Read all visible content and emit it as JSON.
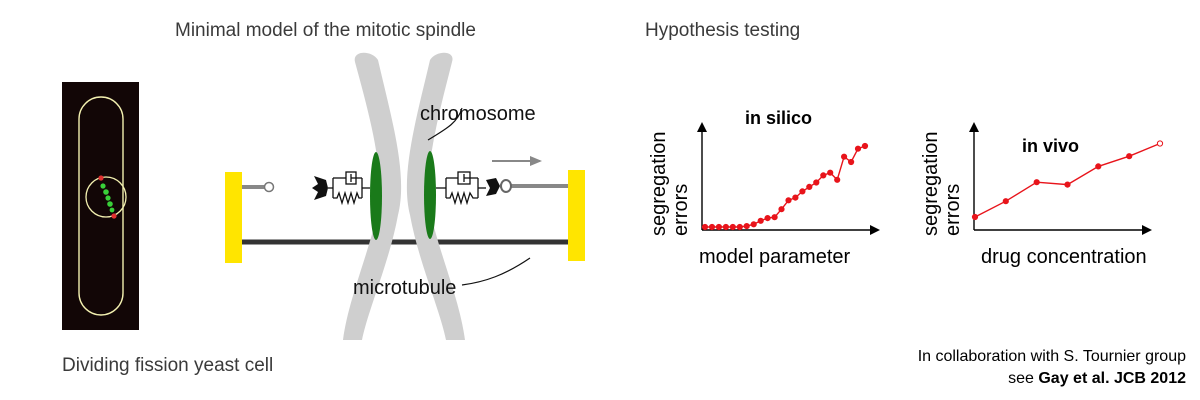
{
  "titles": {
    "model": "Minimal model of the mitotic spindle",
    "hypothesis": "Hypothesis testing"
  },
  "labels": {
    "chromosome": "chromosome",
    "microtubule": "microtubule",
    "cell_caption": "Dividing fission yeast cell"
  },
  "credit": {
    "line1": "In collaboration with S. Tournier group",
    "line2_prefix": "see ",
    "line2_bold": "Gay et al. JCB 2012"
  },
  "colors": {
    "red": "#e8141b",
    "yellow": "#ffe500",
    "green": "#1a7a1a",
    "gray_chromosome": "#cfcfcf",
    "microtubule": "#333333"
  },
  "chart_data": [
    {
      "type": "line",
      "title": "in silico",
      "xlabel": "model parameter",
      "ylabel": "segregation errors",
      "x": [
        0,
        1,
        2,
        3,
        4,
        5,
        6,
        7,
        8,
        9,
        10,
        11,
        12,
        13,
        14,
        15,
        16,
        17,
        18,
        19,
        20,
        21,
        22,
        23
      ],
      "values": [
        0.0,
        0.0,
        0.0,
        0.0,
        0.0,
        0.0,
        0.01,
        0.03,
        0.07,
        0.1,
        0.11,
        0.2,
        0.3,
        0.33,
        0.4,
        0.45,
        0.5,
        0.58,
        0.61,
        0.53,
        0.79,
        0.73,
        0.88,
        0.91
      ],
      "ylim": [
        0,
        1
      ]
    },
    {
      "type": "line",
      "title": "in vivo",
      "xlabel": "drug concentration",
      "ylabel": "segregation errors",
      "x": [
        0,
        1,
        2,
        3,
        4,
        5,
        6
      ],
      "values": [
        0.0,
        0.2,
        0.44,
        0.41,
        0.64,
        0.77,
        0.93
      ],
      "ylim": [
        0,
        1
      ]
    }
  ]
}
